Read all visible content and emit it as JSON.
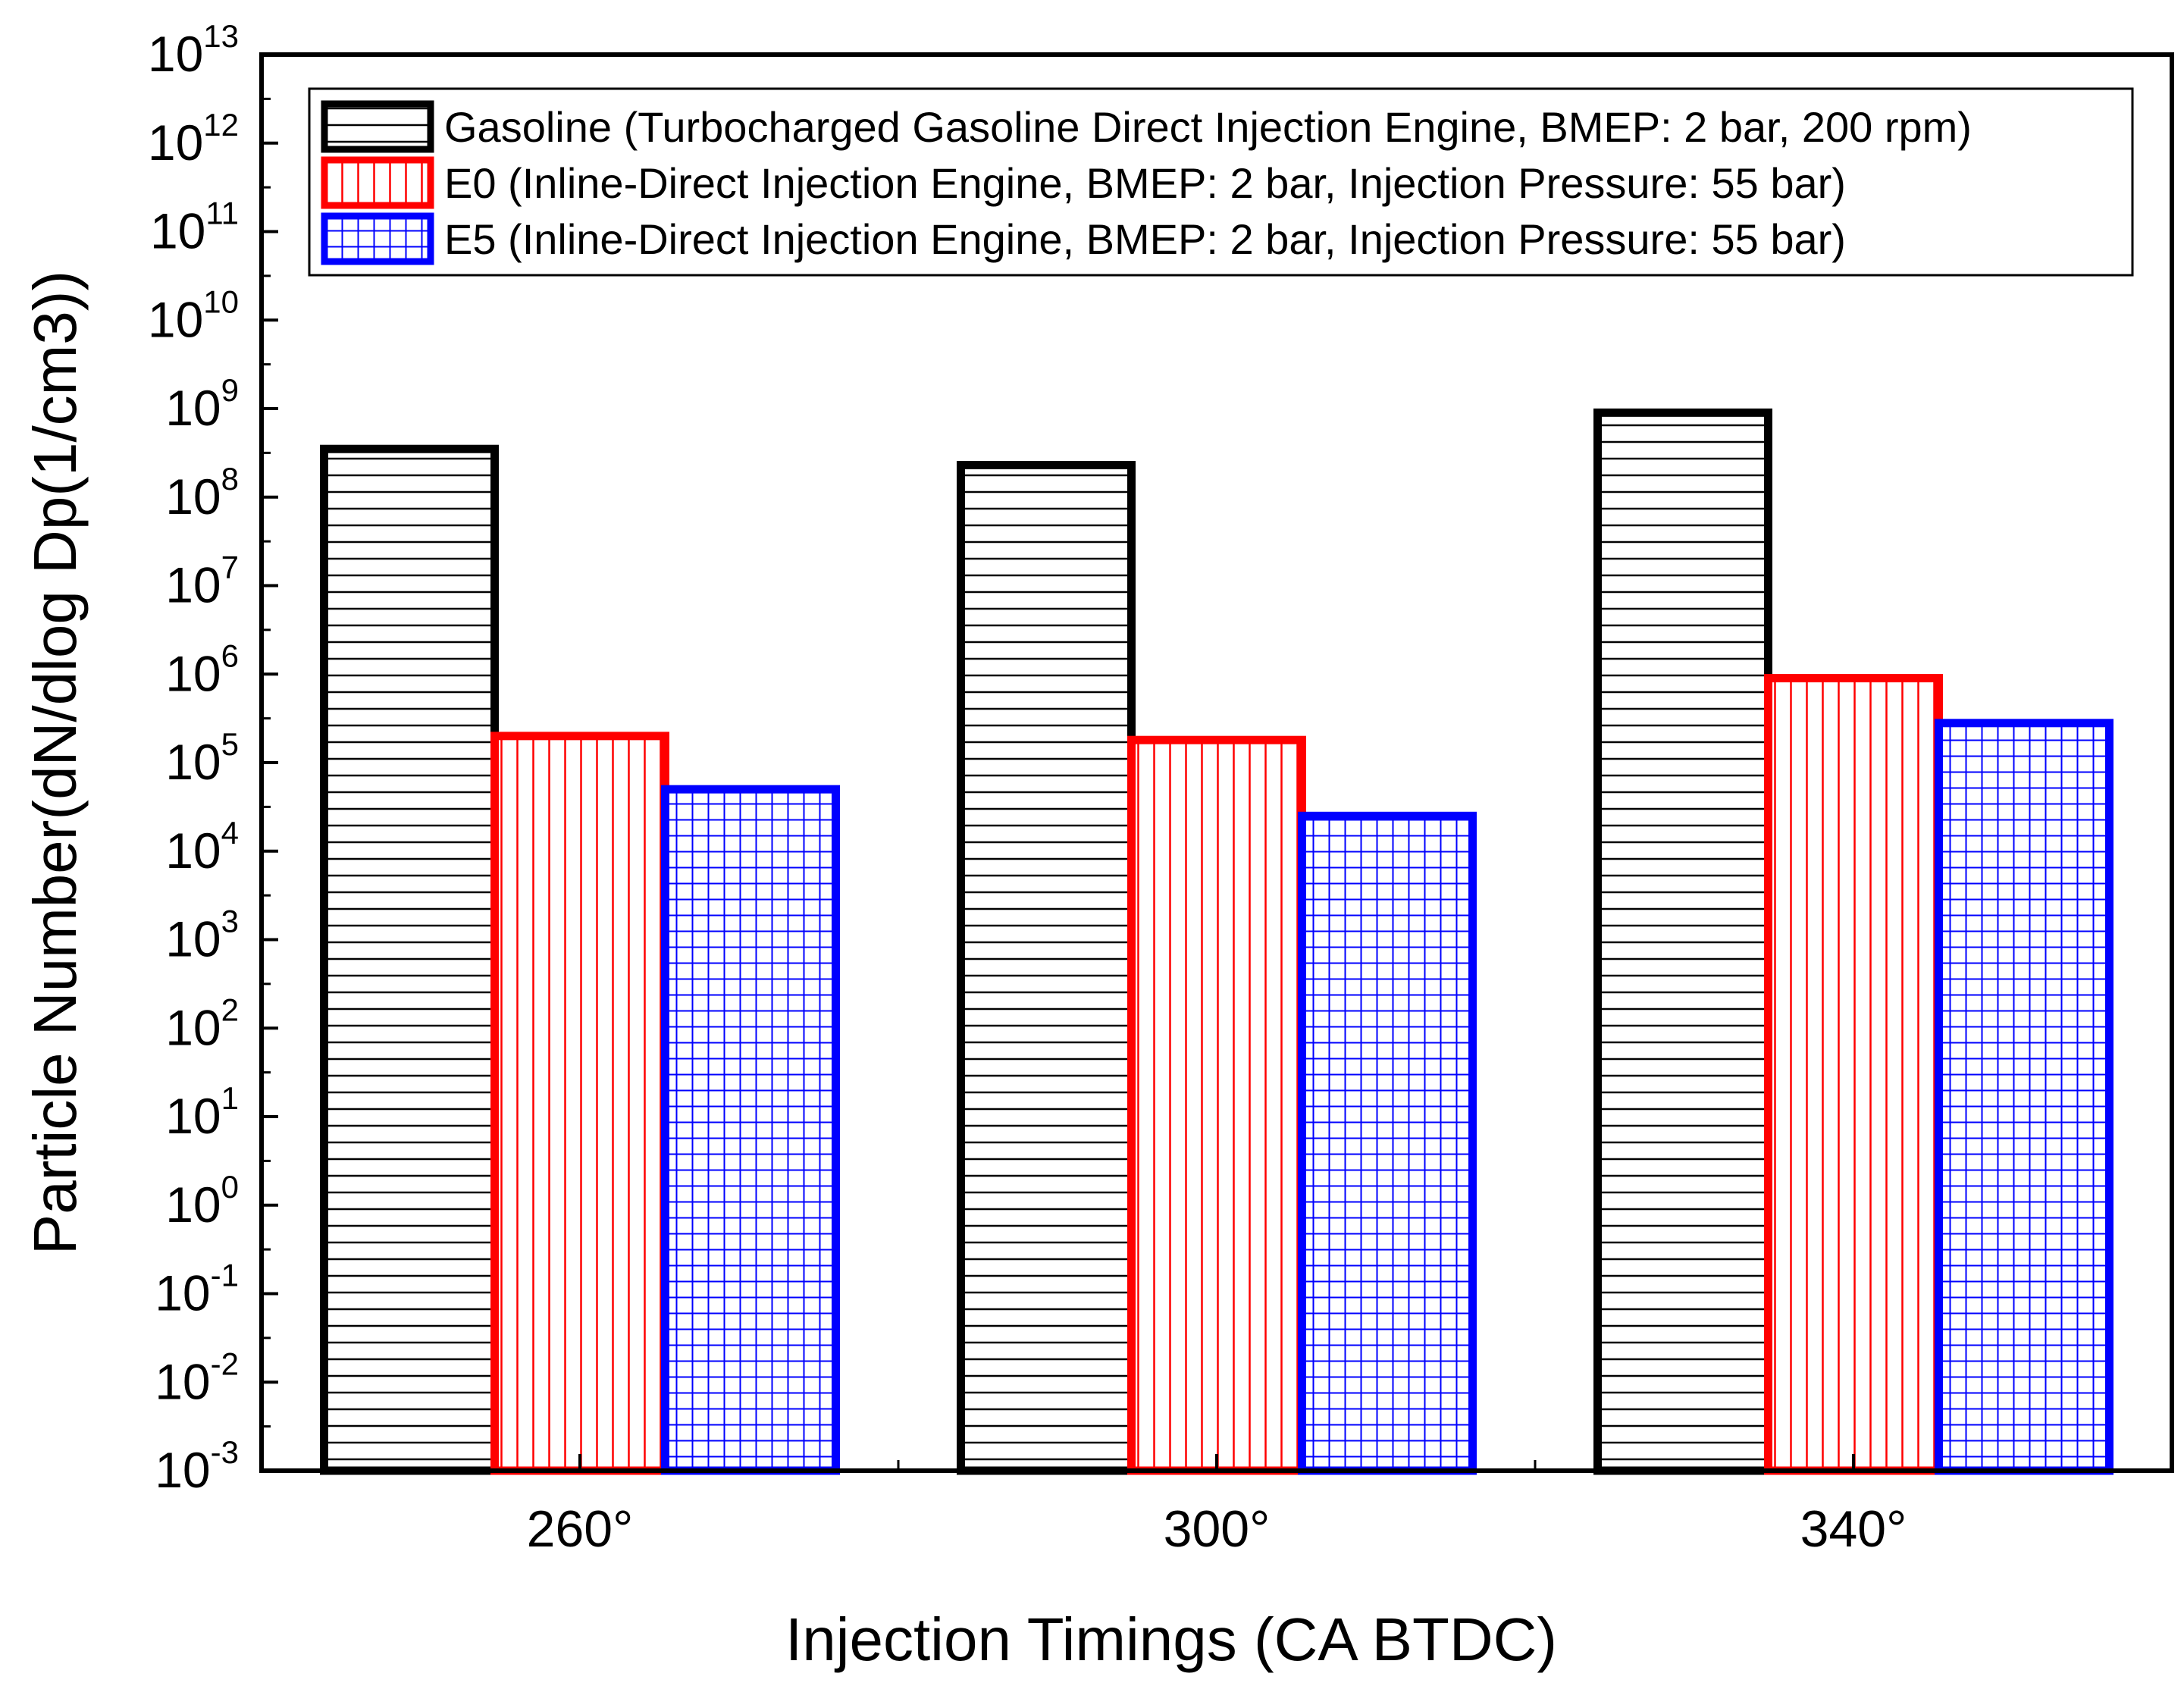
{
  "chart_data": {
    "type": "bar",
    "title": "",
    "xlabel": "Injection Timings (CA BTDC)",
    "ylabel": "Particle Number(dN/dlog Dp(1/cm3))",
    "yscale": "log",
    "ylim": [
      0.001,
      10000000000000
    ],
    "y_ticks": [
      {
        "base": "10",
        "exp": "-3"
      },
      {
        "base": "10",
        "exp": "-2"
      },
      {
        "base": "10",
        "exp": "-1"
      },
      {
        "base": "10",
        "exp": "0"
      },
      {
        "base": "10",
        "exp": "1"
      },
      {
        "base": "10",
        "exp": "2"
      },
      {
        "base": "10",
        "exp": "3"
      },
      {
        "base": "10",
        "exp": "4"
      },
      {
        "base": "10",
        "exp": "5"
      },
      {
        "base": "10",
        "exp": "6"
      },
      {
        "base": "10",
        "exp": "7"
      },
      {
        "base": "10",
        "exp": "8"
      },
      {
        "base": "10",
        "exp": "9"
      },
      {
        "base": "10",
        "exp": "10"
      },
      {
        "base": "10",
        "exp": "11"
      },
      {
        "base": "10",
        "exp": "12"
      },
      {
        "base": "10",
        "exp": "13"
      }
    ],
    "categories": [
      "260°",
      "300°",
      "340°"
    ],
    "legend_position": "top",
    "series": [
      {
        "name": "Gasoline (Turbocharged Gasoline Direct Injection Engine, BMEP: 2 bar, 200 rpm)",
        "values": [
          350000000,
          230000000,
          900000000
        ],
        "color": "#000000",
        "pattern": "horizontal-lines"
      },
      {
        "name": "E0 (Inline-Direct Injection Engine, BMEP: 2 bar, Injection Pressure: 55 bar)",
        "values": [
          200000,
          180000,
          900000
        ],
        "color": "#ff0000",
        "pattern": "vertical-lines"
      },
      {
        "name": "E5 (Inline-Direct Injection Engine, BMEP: 2 bar, Injection Pressure: 55 bar)",
        "values": [
          50000,
          25000,
          280000
        ],
        "color": "#0000ff",
        "pattern": "grid"
      }
    ]
  }
}
